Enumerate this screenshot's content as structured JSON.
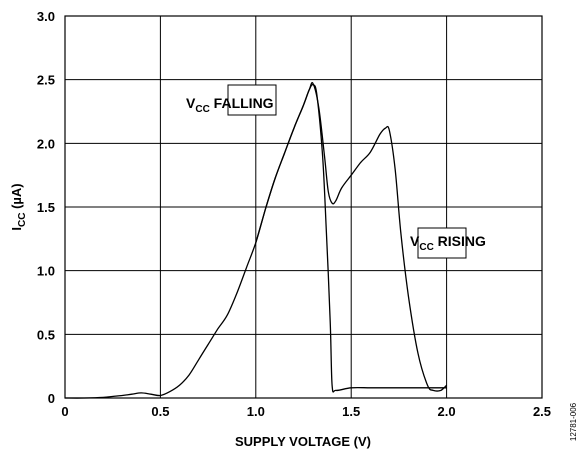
{
  "chart_data": {
    "type": "line",
    "xlabel": "SUPPLY VOLTAGE (V)",
    "ylabel": {
      "main": "I",
      "sub": "CC",
      "unit": " (µA)"
    },
    "xlim": [
      0,
      2.5
    ],
    "ylim": [
      0,
      3.0
    ],
    "xticks": [
      "0",
      "0.5",
      "1.0",
      "1.5",
      "2.0",
      "2.5"
    ],
    "yticks": [
      "0",
      "0.5",
      "1.0",
      "1.5",
      "2.0",
      "2.5",
      "3.0"
    ],
    "grid": true,
    "series": [
      {
        "name": "VCC FALLING",
        "x": [
          0,
          0.1,
          0.2,
          0.3,
          0.35,
          0.4,
          0.45,
          0.5,
          0.55,
          0.6,
          0.65,
          0.7,
          0.75,
          0.8,
          0.85,
          0.9,
          0.95,
          1.0,
          1.05,
          1.1,
          1.15,
          1.2,
          1.25,
          1.28,
          1.3,
          1.32,
          1.35,
          1.37,
          1.39,
          1.4,
          1.42,
          1.5,
          1.6,
          1.7,
          1.8,
          1.9,
          2.0
        ],
        "y": [
          0.0,
          0.0,
          0.005,
          0.02,
          0.03,
          0.04,
          0.03,
          0.02,
          0.05,
          0.1,
          0.18,
          0.3,
          0.42,
          0.54,
          0.65,
          0.82,
          1.02,
          1.22,
          1.48,
          1.72,
          1.92,
          2.12,
          2.3,
          2.42,
          2.46,
          2.38,
          1.9,
          1.3,
          0.6,
          0.1,
          0.06,
          0.08,
          0.08,
          0.08,
          0.08,
          0.08,
          0.08
        ]
      },
      {
        "name": "VCC RISING",
        "x": [
          1.0,
          1.05,
          1.1,
          1.15,
          1.2,
          1.25,
          1.28,
          1.3,
          1.33,
          1.36,
          1.38,
          1.4,
          1.42,
          1.45,
          1.5,
          1.55,
          1.6,
          1.65,
          1.68,
          1.7,
          1.73,
          1.76,
          1.8,
          1.85,
          1.9,
          1.93,
          1.97,
          2.0
        ],
        "y": [
          1.22,
          1.48,
          1.72,
          1.92,
          2.12,
          2.3,
          2.42,
          2.47,
          2.28,
          1.9,
          1.62,
          1.53,
          1.55,
          1.65,
          1.75,
          1.85,
          1.93,
          2.07,
          2.12,
          2.1,
          1.8,
          1.3,
          0.8,
          0.35,
          0.1,
          0.06,
          0.06,
          0.1
        ]
      }
    ],
    "annotations": [
      {
        "main": "V",
        "sub": "CC",
        "rest": " FALLING",
        "series": "VCC FALLING"
      },
      {
        "main": "V",
        "sub": "CC",
        "rest": " RISING",
        "series": "VCC RISING"
      }
    ],
    "figure_id": "12781-006"
  }
}
